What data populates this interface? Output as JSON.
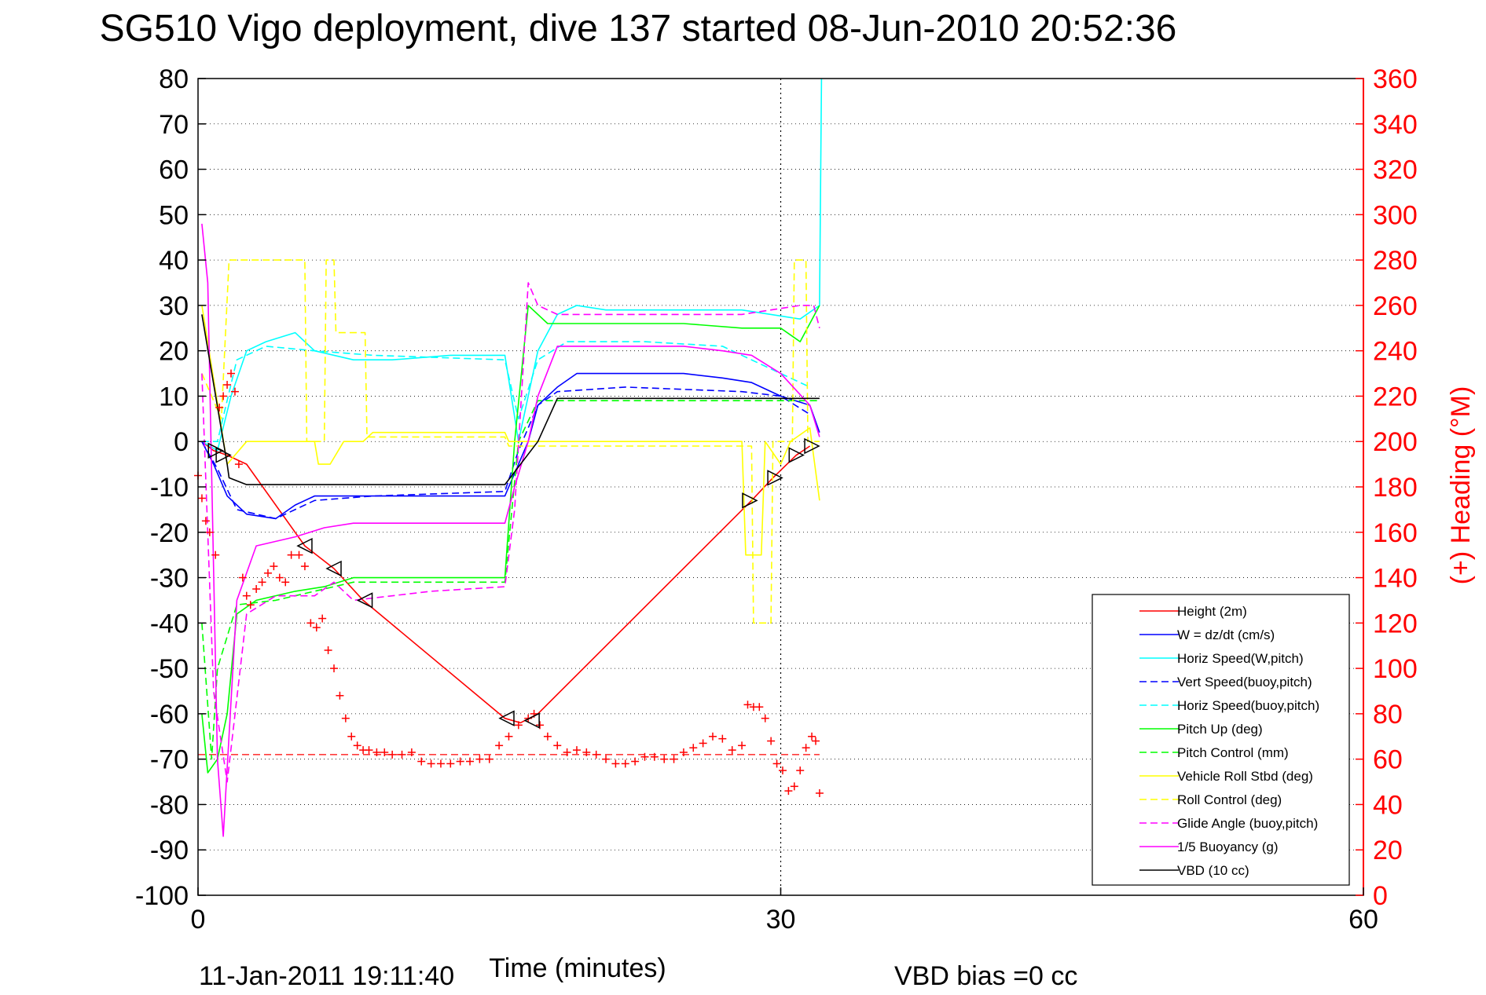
{
  "chart_data": {
    "type": "line",
    "title": "SG510 Vigo deployment, dive 137 started 08-Jun-2010 20:52:36",
    "xlabel": "Time (minutes)",
    "ylabel_left": "",
    "ylabel_right": "(+) Heading (°M)",
    "xlim": [
      0,
      60
    ],
    "ylim_left": [
      -100,
      80
    ],
    "ylim_right": [
      0,
      360
    ],
    "x_ticks": [
      "0",
      "30",
      "60"
    ],
    "y_ticks_left": [
      "80",
      "70",
      "60",
      "50",
      "40",
      "30",
      "20",
      "10",
      "0",
      "-10",
      "-20",
      "-30",
      "-40",
      "-50",
      "-60",
      "-70",
      "-80",
      "-90",
      "-100"
    ],
    "y_ticks_right": [
      "360",
      "340",
      "320",
      "300",
      "280",
      "260",
      "240",
      "220",
      "200",
      "180",
      "160",
      "140",
      "120",
      "100",
      "80",
      "60",
      "40",
      "20",
      "0"
    ],
    "grid": true,
    "legend_position": "bottom-right",
    "footer_left": "11-Jan-2011 19:11:40",
    "footer_right": "VBD bias =0 cc",
    "colors": {
      "right_axis": "#ff0000",
      "left_axis": "#000000"
    },
    "reference_lines": [
      {
        "axis": "x",
        "value": 30,
        "style": "dotted",
        "color": "#000000"
      },
      {
        "axis": "y",
        "value": -69,
        "style": "dashed",
        "color": "#ff0000"
      }
    ],
    "series": [
      {
        "name": "Height (2m)",
        "color": "#ff0000",
        "dash": "solid",
        "x": [
          0.2,
          0.8,
          1.5,
          2.5,
          5.5,
          7,
          8.5,
          15.8,
          16.6,
          17.5,
          28.5,
          29.6,
          30.8,
          31.5
        ],
        "y": [
          0,
          -2,
          -3,
          -5,
          -23,
          -28,
          -35,
          -61,
          -62,
          -60,
          -13,
          -8,
          -3,
          -1
        ]
      },
      {
        "name": "W = dz/dt (cm/s)",
        "color": "#0000ff",
        "dash": "solid",
        "x": [
          0.2,
          0.8,
          1.5,
          2.5,
          4,
          5,
          6,
          7,
          9,
          12,
          14,
          15.8,
          16.2,
          17,
          17.5,
          18.5,
          19.5,
          22,
          25,
          27,
          28.5,
          30,
          31.5,
          32
        ],
        "y": [
          0,
          -5,
          -12,
          -16,
          -17,
          -14,
          -12,
          -12,
          -12,
          -12,
          -12,
          -12,
          -8,
          0,
          8,
          12,
          15,
          15,
          15,
          14,
          13,
          10,
          8,
          2
        ]
      },
      {
        "name": "Horiz Speed(W,pitch)",
        "color": "#00ffff",
        "dash": "solid",
        "x": [
          0.2,
          1,
          1.7,
          2.5,
          3.5,
          5,
          6,
          8,
          10,
          13,
          15.8,
          16.5,
          17.5,
          18.5,
          19.5,
          21,
          25,
          28,
          29.5,
          31,
          32,
          32.1
        ],
        "y": [
          0,
          -2,
          10,
          20,
          22,
          24,
          20,
          18,
          18,
          19,
          19,
          0,
          20,
          28,
          30,
          29,
          29,
          29,
          28,
          27,
          30,
          80
        ]
      },
      {
        "name": "Vert Speed(buoy,pitch)",
        "color": "#0000ff",
        "dash": "dashed",
        "x": [
          0.2,
          1,
          2,
          4,
          6,
          9,
          15.8,
          16.5,
          17.5,
          18.5,
          22,
          28,
          30,
          31.5
        ],
        "y": [
          0,
          -6,
          -15,
          -17,
          -13,
          -12,
          -11,
          -2,
          8,
          11,
          12,
          11,
          10,
          6
        ]
      },
      {
        "name": "Horiz Speed(buoy,pitch)",
        "color": "#00ffff",
        "dash": "dashed",
        "x": [
          0.2,
          1,
          2,
          3.5,
          6,
          9,
          15.8,
          16.5,
          17.5,
          19,
          23,
          27,
          29.5,
          31.5
        ],
        "y": [
          0,
          0,
          18,
          21,
          20,
          19,
          18,
          5,
          18,
          22,
          22,
          21,
          16,
          12
        ]
      },
      {
        "name": "Pitch Up (deg)",
        "color": "#00ff00",
        "dash": "solid",
        "x": [
          0.2,
          0.5,
          1,
          1.5,
          2,
          3,
          5,
          6.5,
          8,
          10,
          15.8,
          16.3,
          17,
          18,
          20,
          25,
          28,
          30,
          31,
          32
        ],
        "y": [
          -60,
          -73,
          -70,
          -60,
          -38,
          -35,
          -33,
          -32,
          -30,
          -30,
          -30,
          0,
          30,
          26,
          26,
          26,
          25,
          25,
          22,
          30
        ]
      },
      {
        "name": "Pitch Control (mm)",
        "color": "#00ff00",
        "dash": "dashed",
        "x": [
          0.2,
          0.7,
          1,
          2,
          4,
          8,
          15.8,
          16.5,
          17.5,
          20,
          28,
          31,
          32
        ],
        "y": [
          -40,
          -70,
          -50,
          -36,
          -35,
          -31,
          -31,
          0,
          9,
          9,
          9,
          9,
          9
        ]
      },
      {
        "name": "Vehicle Roll Stbd (deg)",
        "color": "#ffff00",
        "dash": "solid",
        "x": [
          0.2,
          1.5,
          2.5,
          6,
          6.2,
          6.8,
          7.5,
          8.5,
          9,
          15.8,
          16,
          28,
          28.2,
          29,
          29.2,
          30,
          30.5,
          31.5,
          32
        ],
        "y": [
          30,
          -5,
          0,
          0,
          -5,
          -5,
          0,
          0,
          2,
          2,
          0,
          0,
          -25,
          -25,
          0,
          -5,
          0,
          3,
          -13
        ]
      },
      {
        "name": "Roll Control (deg)",
        "color": "#ffff00",
        "dash": "dashed",
        "x": [
          0.2,
          1.2,
          1.6,
          5.5,
          5.6,
          6.5,
          6.6,
          7,
          7.1,
          8.6,
          8.7,
          15.8,
          16,
          28.5,
          28.6,
          29.5,
          29.6,
          30.6,
          30.7,
          31.3,
          31.4,
          32
        ],
        "y": [
          15,
          5,
          40,
          40,
          0,
          0,
          40,
          40,
          24,
          24,
          1,
          1,
          -1,
          -1,
          -40,
          -40,
          0,
          0,
          40,
          40,
          0,
          0
        ]
      },
      {
        "name": "Glide Angle (buoy,pitch)",
        "color": "#ff00ff",
        "dash": "dashed",
        "x": [
          0.2,
          0.8,
          1.5,
          2.5,
          4,
          6,
          7,
          8,
          12,
          15.8,
          16.3,
          17,
          17.5,
          18.5,
          22,
          28,
          31,
          31.7,
          32
        ],
        "y": [
          15,
          -55,
          -75,
          -38,
          -34,
          -34,
          -31,
          -35,
          -33,
          -32,
          -15,
          35,
          30,
          28,
          28,
          28,
          30,
          30,
          25
        ]
      },
      {
        "name": "1/5 Buoyancy (g)",
        "color": "#ff00ff",
        "dash": "solid",
        "x": [
          0.2,
          0.5,
          1,
          1.3,
          2,
          3,
          5,
          6.5,
          8,
          15.8,
          16.3,
          17,
          17.5,
          18.5,
          25,
          27,
          28.5,
          30,
          31.5,
          32
        ],
        "y": [
          48,
          35,
          -70,
          -87,
          -35,
          -23,
          -21,
          -19,
          -18,
          -18,
          -10,
          0,
          10,
          21,
          21,
          20,
          19,
          15,
          8,
          1
        ]
      },
      {
        "name": "VBD (10 cc)",
        "color": "#000000",
        "dash": "solid",
        "x": [
          0.2,
          1.5,
          1.6,
          2.5,
          15.8,
          17.5,
          18.5,
          30,
          31,
          32
        ],
        "y": [
          28,
          -5,
          -8,
          -9.5,
          -9.5,
          0,
          9.5,
          9.5,
          9.5,
          9.5
        ]
      }
    ],
    "heading_points": {
      "name": "Heading",
      "color": "#ff0000",
      "marker": "+",
      "axis": "right",
      "x": [
        0,
        0.2,
        0.4,
        0.6,
        0.9,
        1.1,
        1.3,
        1.5,
        1.7,
        1.9,
        2.1,
        2.3,
        2.5,
        2.7,
        3,
        3.3,
        3.6,
        3.9,
        4.2,
        4.5,
        4.8,
        5.2,
        5.5,
        5.8,
        6.1,
        6.4,
        6.7,
        7,
        7.3,
        7.6,
        7.9,
        8.2,
        8.5,
        8.8,
        9.2,
        9.6,
        10,
        10.5,
        11,
        11.5,
        12,
        12.5,
        13,
        13.5,
        14,
        14.5,
        15,
        15.5,
        16,
        16.5,
        17,
        17.3,
        17.6,
        18,
        18.5,
        19,
        19.5,
        20,
        20.5,
        21,
        21.5,
        22,
        22.5,
        23,
        23.5,
        24,
        24.5,
        25,
        25.5,
        26,
        26.5,
        27,
        27.5,
        28,
        28.3,
        28.6,
        28.9,
        29.2,
        29.5,
        29.8,
        30.1,
        30.4,
        30.7,
        31,
        31.3,
        31.6,
        31.8,
        32
      ],
      "y": [
        185,
        175,
        165,
        160,
        150,
        215,
        220,
        225,
        230,
        222,
        190,
        140,
        132,
        128,
        135,
        138,
        142,
        145,
        140,
        138,
        150,
        150,
        145,
        120,
        118,
        122,
        108,
        100,
        88,
        78,
        70,
        66,
        64,
        64,
        63,
        63,
        62,
        62,
        63,
        59,
        58,
        58,
        58,
        59,
        59,
        60,
        60,
        66,
        70,
        75,
        78,
        80,
        75,
        70,
        66,
        63,
        64,
        63,
        62,
        60,
        58,
        58,
        59,
        61,
        61,
        60,
        60,
        63,
        65,
        67,
        70,
        69,
        64,
        66,
        84,
        83,
        83,
        78,
        68,
        58,
        55,
        46,
        48,
        55,
        65,
        70,
        68,
        45
      ]
    },
    "direction_markers": {
      "x": [
        0.9,
        1.3,
        5.5,
        7,
        8.6,
        15.9,
        17.2,
        28.4,
        29.7,
        30.8,
        31.6
      ],
      "y": [
        -2,
        -3,
        -23,
        -28,
        -35,
        -61,
        -61.5,
        -13,
        -8,
        -3,
        -1
      ],
      "direction": [
        "right",
        "right",
        "left",
        "left",
        "left",
        "left",
        "left",
        "right",
        "right",
        "right",
        "right"
      ]
    }
  }
}
